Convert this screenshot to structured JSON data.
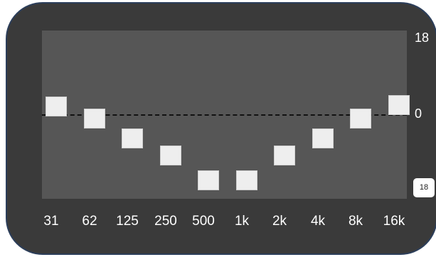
{
  "equalizer": {
    "scale": {
      "top": "18",
      "zero": "0",
      "bottom": "18"
    },
    "bands": [
      {
        "label": "31",
        "level": 0.555
      },
      {
        "label": "62",
        "level": 0.473
      },
      {
        "label": "125",
        "level": 0.342
      },
      {
        "label": "250",
        "level": 0.224
      },
      {
        "label": "500",
        "level": 0.059
      },
      {
        "label": "1k",
        "level": 0.059
      },
      {
        "label": "2k",
        "level": 0.224
      },
      {
        "label": "4k",
        "level": 0.342
      },
      {
        "label": "8k",
        "level": 0.473
      },
      {
        "label": "16k",
        "level": 0.565
      }
    ]
  }
}
